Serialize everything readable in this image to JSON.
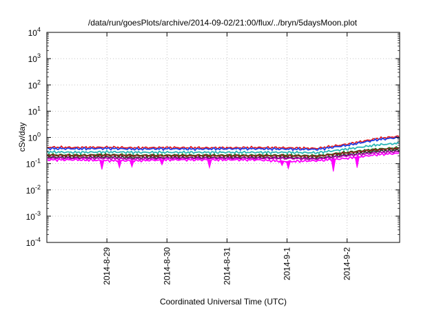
{
  "chart_data": {
    "type": "line",
    "title": "/data/run/goesPlots/archive/2014-09-02/21:00/flux/../bryn/5daysMoon.plot",
    "xlabel": "Coordinated Universal Time (UTC)",
    "ylabel": "cSv/day",
    "yscale": "log",
    "ylim": [
      0.0001,
      10000
    ],
    "xlim": [
      "2014-08-28T00:00",
      "2014-09-02T21:00"
    ],
    "grid": true,
    "legend": "none",
    "y_ticks": [
      {
        "value": 0.0001,
        "mantissa": "10",
        "exp": "-4"
      },
      {
        "value": 0.001,
        "mantissa": "10",
        "exp": "-3"
      },
      {
        "value": 0.01,
        "mantissa": "10",
        "exp": "-2"
      },
      {
        "value": 0.1,
        "mantissa": "10",
        "exp": "-1"
      },
      {
        "value": 1,
        "mantissa": "10",
        "exp": "0"
      },
      {
        "value": 10,
        "mantissa": "10",
        "exp": "1"
      },
      {
        "value": 100,
        "mantissa": "10",
        "exp": "2"
      },
      {
        "value": 1000,
        "mantissa": "10",
        "exp": "3"
      },
      {
        "value": 10000,
        "mantissa": "10",
        "exp": "4"
      }
    ],
    "x_ticks": [
      {
        "value": "2014-08-29T00:00",
        "label": "2014-8-29"
      },
      {
        "value": "2014-08-30T00:00",
        "label": "2014-8-30"
      },
      {
        "value": "2014-08-31T00:00",
        "label": "2014-8-31"
      },
      {
        "value": "2014-09-01T00:00",
        "label": "2014-9-1"
      },
      {
        "value": "2014-09-02T00:00",
        "label": "2014-9-2"
      }
    ],
    "x": [
      "2014-08-28T00:00",
      "2014-08-28T12:00",
      "2014-08-29T00:00",
      "2014-08-29T12:00",
      "2014-08-30T00:00",
      "2014-08-30T12:00",
      "2014-08-31T00:00",
      "2014-08-31T12:00",
      "2014-09-01T00:00",
      "2014-09-01T12:00",
      "2014-09-02T00:00",
      "2014-09-02T12:00",
      "2014-09-02T21:00"
    ],
    "series": [
      {
        "color": "#e41a1c",
        "values": [
          0.42,
          0.41,
          0.42,
          0.4,
          0.41,
          0.4,
          0.4,
          0.41,
          0.4,
          0.38,
          0.55,
          0.9,
          1.1
        ]
      },
      {
        "color": "#1f3fe6",
        "values": [
          0.38,
          0.37,
          0.38,
          0.36,
          0.37,
          0.36,
          0.37,
          0.37,
          0.36,
          0.35,
          0.5,
          0.82,
          1.0
        ]
      },
      {
        "color": "#2ab7b7",
        "values": [
          0.28,
          0.27,
          0.28,
          0.27,
          0.27,
          0.27,
          0.27,
          0.27,
          0.27,
          0.26,
          0.36,
          0.52,
          0.6
        ]
      },
      {
        "color": "#1a7a1a",
        "values": [
          0.22,
          0.21,
          0.22,
          0.21,
          0.21,
          0.21,
          0.21,
          0.21,
          0.21,
          0.2,
          0.27,
          0.36,
          0.4
        ]
      },
      {
        "color": "#8b1a1a",
        "values": [
          0.21,
          0.2,
          0.21,
          0.2,
          0.2,
          0.2,
          0.2,
          0.2,
          0.2,
          0.19,
          0.26,
          0.34,
          0.38
        ]
      },
      {
        "color": "#333333",
        "values": [
          0.18,
          0.17,
          0.18,
          0.17,
          0.17,
          0.17,
          0.17,
          0.17,
          0.17,
          0.16,
          0.22,
          0.3,
          0.33
        ]
      },
      {
        "color": "#b000b0",
        "values": [
          0.16,
          0.16,
          0.16,
          0.15,
          0.16,
          0.16,
          0.16,
          0.16,
          0.16,
          0.15,
          0.2,
          0.26,
          0.29
        ]
      },
      {
        "color": "#ff00ff",
        "values": [
          0.14,
          0.14,
          0.13,
          0.13,
          0.14,
          0.14,
          0.14,
          0.14,
          0.12,
          0.13,
          0.16,
          0.22,
          0.25
        ]
      }
    ],
    "dips": [
      {
        "x": "2014-08-28T22:00",
        "y": 0.06
      },
      {
        "x": "2014-08-29T05:00",
        "y": 0.07
      },
      {
        "x": "2014-08-29T10:00",
        "y": 0.075
      },
      {
        "x": "2014-08-29T22:00",
        "y": 0.09
      },
      {
        "x": "2014-08-30T17:00",
        "y": 0.07
      },
      {
        "x": "2014-08-31T22:00",
        "y": 0.085
      },
      {
        "x": "2014-09-01T00:30",
        "y": 0.065
      },
      {
        "x": "2014-09-01T18:30",
        "y": 0.05
      },
      {
        "x": "2014-09-02T04:00",
        "y": 0.07
      }
    ]
  }
}
